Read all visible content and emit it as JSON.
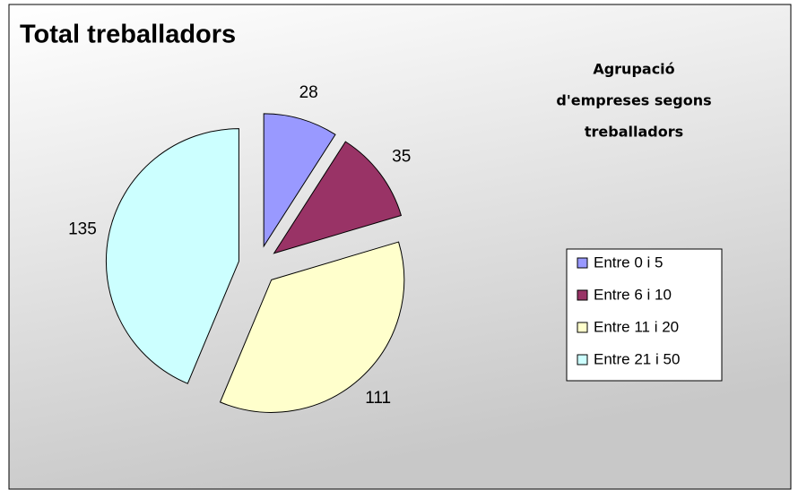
{
  "chart_data": {
    "type": "pie",
    "title": "Total treballadors",
    "annotation_lines": [
      "Agrupació",
      "d'empreses segons",
      "treballadors"
    ],
    "categories": [
      "Entre 0 i 5",
      "Entre 6 i 10",
      "Entre 11 i 20",
      "Entre 21 i 50"
    ],
    "values": [
      28,
      35,
      111,
      135
    ],
    "colors": [
      "#9999ff",
      "#993366",
      "#ffffcc",
      "#ccffff"
    ],
    "legend": "right"
  }
}
